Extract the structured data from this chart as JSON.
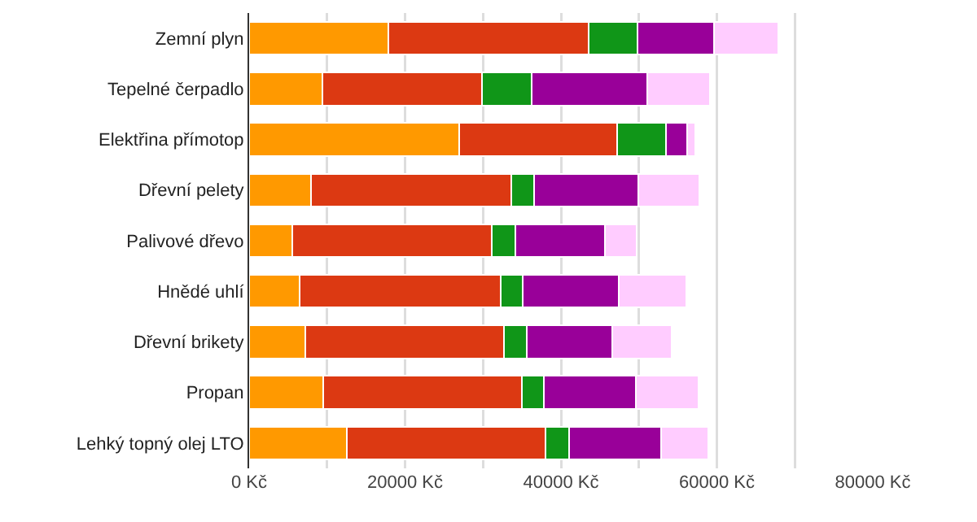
{
  "chart_data": {
    "type": "bar",
    "orientation": "horizontal",
    "stacked": true,
    "categories": [
      "Zemní plyn",
      "Tepelné čerpadlo",
      "Elektřina přímotop",
      "Dřevní pelety",
      "Palivové dřevo",
      "Hnědé uhlí",
      "Dřevní brikety",
      "Propan",
      "Lehký topný olej LTO"
    ],
    "series": [
      {
        "color": "#ff9900",
        "values": [
          17900,
          9400,
          26900,
          7900,
          5500,
          6500,
          7200,
          9500,
          12500
        ]
      },
      {
        "color": "#dc3912",
        "values": [
          25600,
          20500,
          20300,
          25700,
          25600,
          25800,
          25500,
          25500,
          25500
        ]
      },
      {
        "color": "#109618",
        "values": [
          6300,
          6300,
          6300,
          3000,
          3000,
          2800,
          2900,
          2800,
          3000
        ]
      },
      {
        "color": "#990099",
        "values": [
          9800,
          14900,
          2700,
          13300,
          11500,
          12300,
          11000,
          11800,
          11800
        ]
      },
      {
        "color": "#ffccff",
        "values": [
          8300,
          8000,
          1000,
          7900,
          4100,
          8700,
          7600,
          8000,
          6100
        ]
      }
    ],
    "xlim": [
      0,
      80000
    ],
    "xticks": [
      {
        "value": 0,
        "label": "0 Kč"
      },
      {
        "value": 10000,
        "label": null
      },
      {
        "value": 20000,
        "label": "20000 Kč"
      },
      {
        "value": 30000,
        "label": null
      },
      {
        "value": 40000,
        "label": "40000 Kč"
      },
      {
        "value": 50000,
        "label": null
      },
      {
        "value": 60000,
        "label": "60000 Kč"
      },
      {
        "value": 70000,
        "label": null
      },
      {
        "value": 80000,
        "label": "80000 Kč"
      }
    ],
    "grid": true
  }
}
